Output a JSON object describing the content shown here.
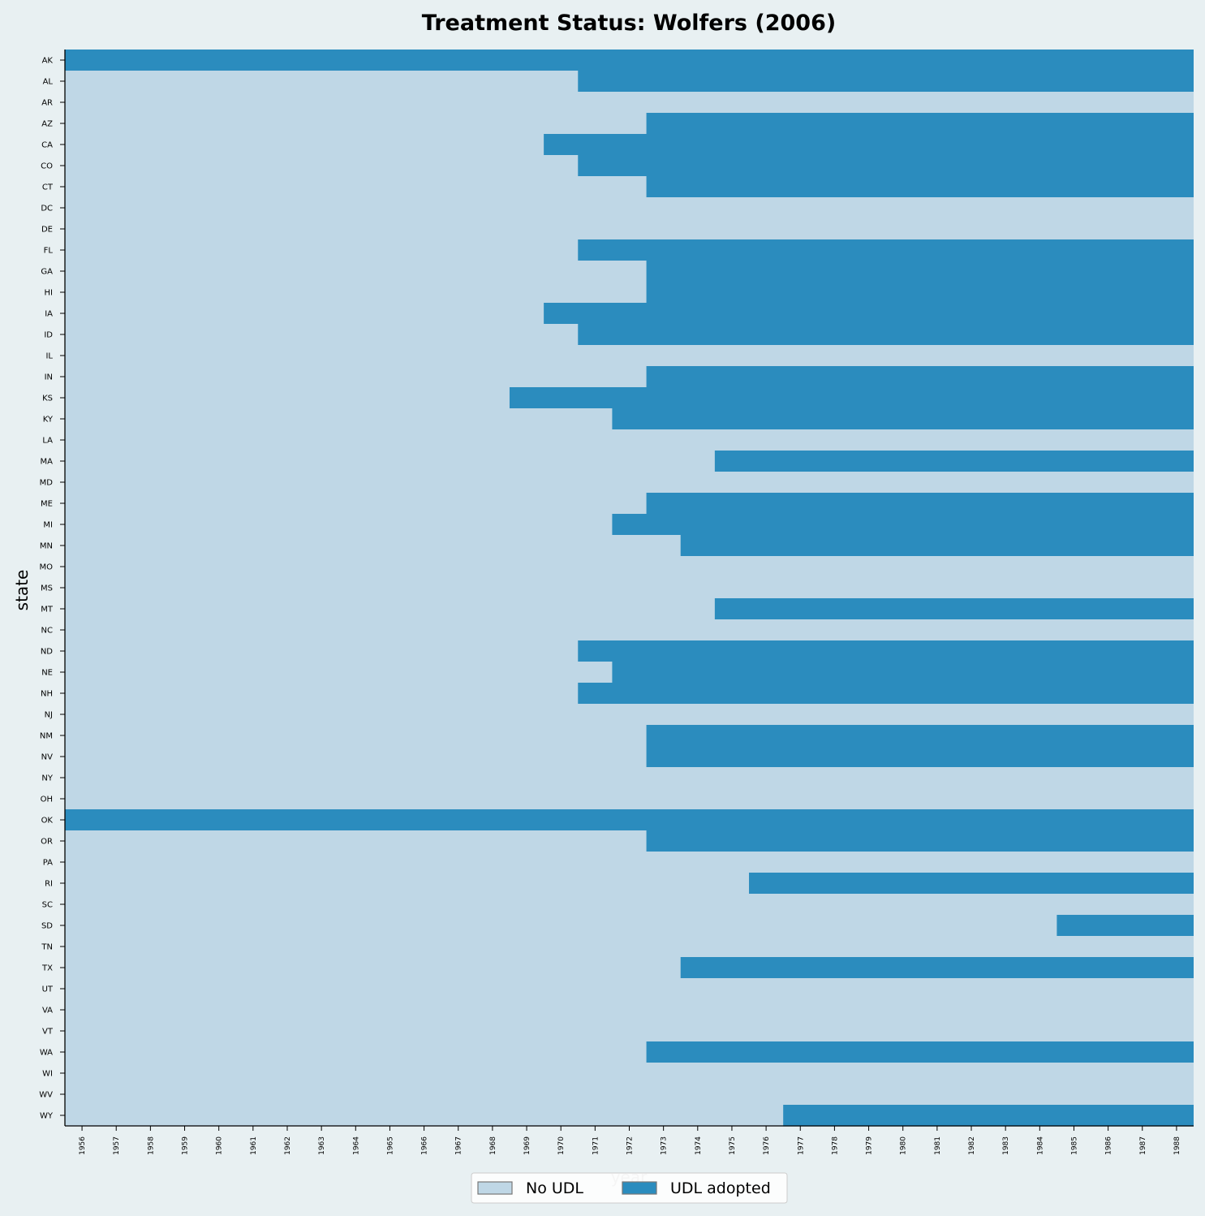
{
  "chart_data": {
    "type": "heatmap",
    "title": "Treatment Status: Wolfers (2006)",
    "xlabel": "year",
    "ylabel": "state",
    "x": [
      1956,
      1957,
      1958,
      1959,
      1960,
      1961,
      1962,
      1963,
      1964,
      1965,
      1966,
      1967,
      1968,
      1969,
      1970,
      1971,
      1972,
      1973,
      1974,
      1975,
      1976,
      1977,
      1978,
      1979,
      1980,
      1981,
      1982,
      1983,
      1984,
      1985,
      1986,
      1987,
      1988
    ],
    "states": [
      {
        "state": "AK",
        "adopted_from": 1956
      },
      {
        "state": "AL",
        "adopted_from": 1971
      },
      {
        "state": "AR",
        "adopted_from": null
      },
      {
        "state": "AZ",
        "adopted_from": 1973
      },
      {
        "state": "CA",
        "adopted_from": 1970
      },
      {
        "state": "CO",
        "adopted_from": 1971
      },
      {
        "state": "CT",
        "adopted_from": 1973
      },
      {
        "state": "DC",
        "adopted_from": null
      },
      {
        "state": "DE",
        "adopted_from": null
      },
      {
        "state": "FL",
        "adopted_from": 1971
      },
      {
        "state": "GA",
        "adopted_from": 1973
      },
      {
        "state": "HI",
        "adopted_from": 1973
      },
      {
        "state": "IA",
        "adopted_from": 1970
      },
      {
        "state": "ID",
        "adopted_from": 1971
      },
      {
        "state": "IL",
        "adopted_from": null
      },
      {
        "state": "IN",
        "adopted_from": 1973
      },
      {
        "state": "KS",
        "adopted_from": 1969
      },
      {
        "state": "KY",
        "adopted_from": 1972
      },
      {
        "state": "LA",
        "adopted_from": null
      },
      {
        "state": "MA",
        "adopted_from": 1975
      },
      {
        "state": "MD",
        "adopted_from": null
      },
      {
        "state": "ME",
        "adopted_from": 1973
      },
      {
        "state": "MI",
        "adopted_from": 1972
      },
      {
        "state": "MN",
        "adopted_from": 1974
      },
      {
        "state": "MO",
        "adopted_from": null
      },
      {
        "state": "MS",
        "adopted_from": null
      },
      {
        "state": "MT",
        "adopted_from": 1975
      },
      {
        "state": "NC",
        "adopted_from": null
      },
      {
        "state": "ND",
        "adopted_from": 1971
      },
      {
        "state": "NE",
        "adopted_from": 1972
      },
      {
        "state": "NH",
        "adopted_from": 1971
      },
      {
        "state": "NJ",
        "adopted_from": null
      },
      {
        "state": "NM",
        "adopted_from": 1973
      },
      {
        "state": "NV",
        "adopted_from": 1973
      },
      {
        "state": "NY",
        "adopted_from": null
      },
      {
        "state": "OH",
        "adopted_from": null
      },
      {
        "state": "OK",
        "adopted_from": 1956
      },
      {
        "state": "OR",
        "adopted_from": 1973
      },
      {
        "state": "PA",
        "adopted_from": null
      },
      {
        "state": "RI",
        "adopted_from": 1976
      },
      {
        "state": "SC",
        "adopted_from": null
      },
      {
        "state": "SD",
        "adopted_from": 1985
      },
      {
        "state": "TN",
        "adopted_from": null
      },
      {
        "state": "TX",
        "adopted_from": 1974
      },
      {
        "state": "UT",
        "adopted_from": null
      },
      {
        "state": "VA",
        "adopted_from": null
      },
      {
        "state": "VT",
        "adopted_from": null
      },
      {
        "state": "WA",
        "adopted_from": 1973
      },
      {
        "state": "WI",
        "adopted_from": null
      },
      {
        "state": "WV",
        "adopted_from": null
      },
      {
        "state": "WY",
        "adopted_from": 1977
      }
    ],
    "legend": {
      "placement": "bottom-center",
      "entries": [
        {
          "label": "No UDL",
          "color": "#bfd7e6"
        },
        {
          "label": "UDL adopted",
          "color": "#2b8cbe"
        }
      ]
    },
    "colors": {
      "untreated": "#bfd7e6",
      "treated": "#2b8cbe",
      "background": "#e8f0f2",
      "axis": "#000000",
      "xlabel": "#bbbbbb"
    }
  }
}
